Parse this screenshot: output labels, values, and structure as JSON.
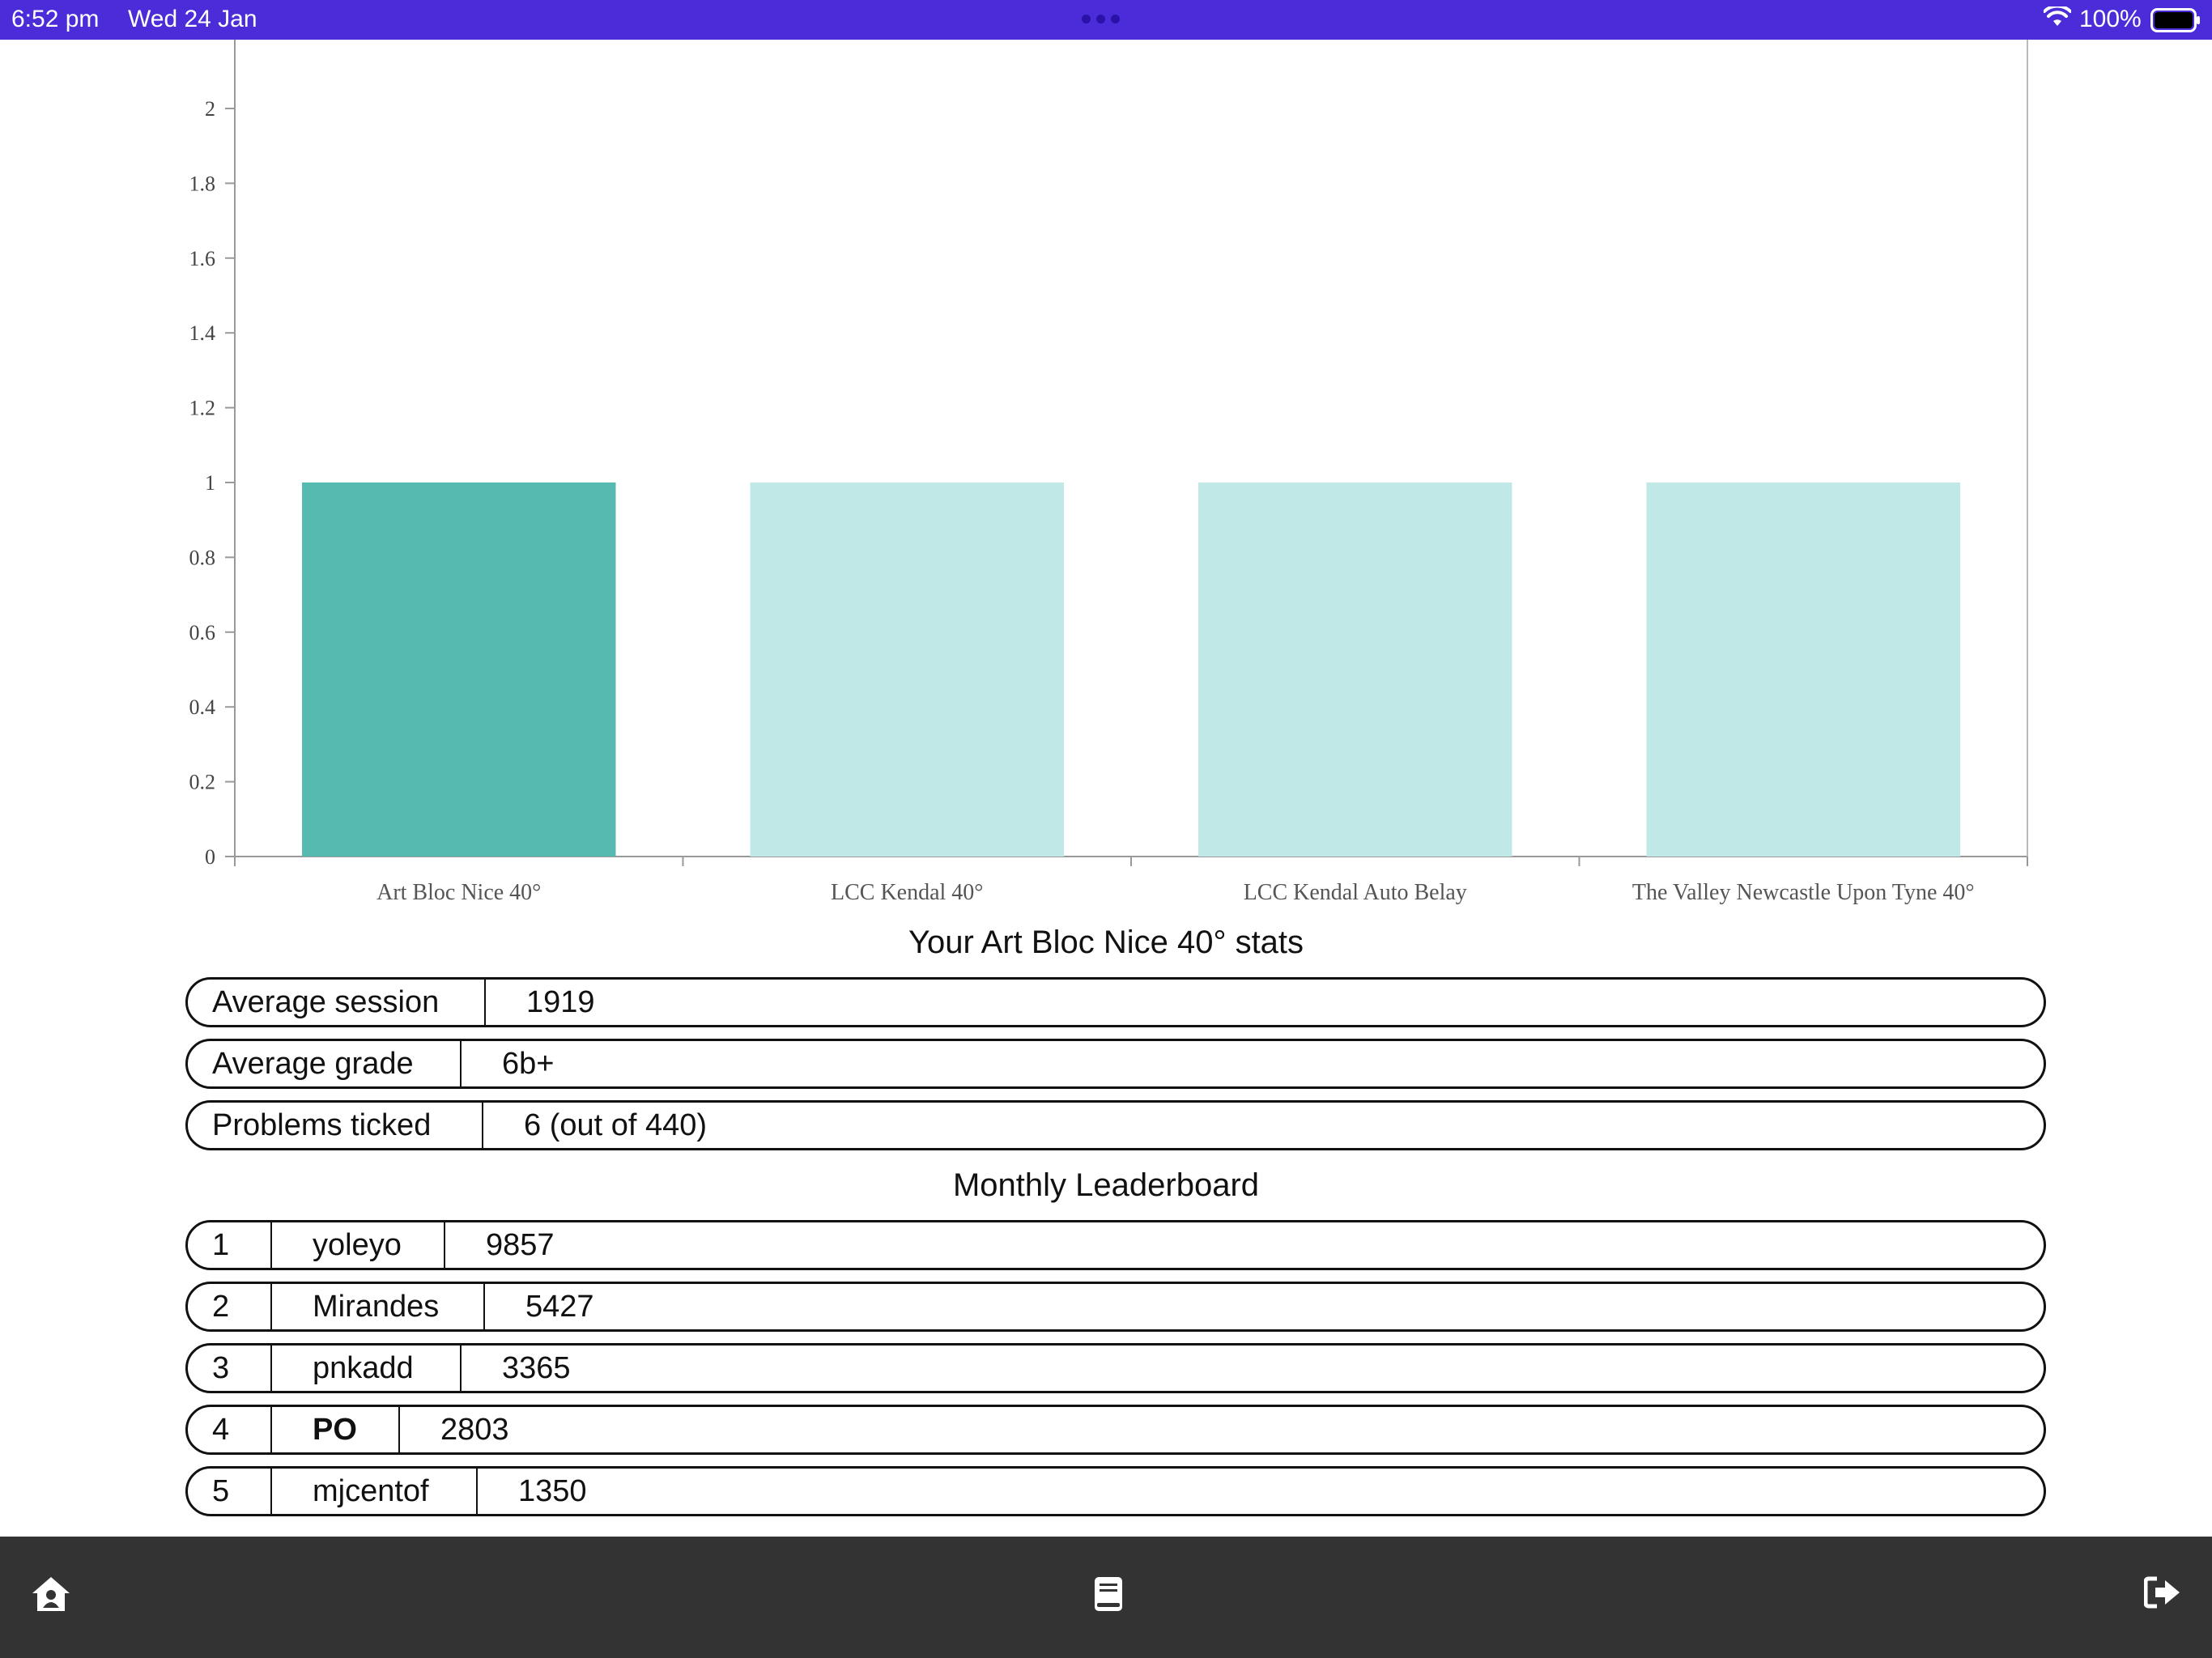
{
  "status_bar": {
    "time": "6:52 pm",
    "date": "Wed 24 Jan",
    "battery": "100%"
  },
  "chart_data": {
    "type": "bar",
    "categories": [
      "Art Bloc Nice 40°",
      "LCC Kendal 40°",
      "LCC Kendal Auto Belay",
      "The Valley Newcastle Upon Tyne 40°"
    ],
    "values": [
      1,
      1,
      1,
      1
    ],
    "highlighted_index": 0,
    "colors": {
      "highlight": "#57bab0",
      "normal": "#bfe8e6"
    },
    "yticks": [
      "0",
      "0.2",
      "0.4",
      "0.6",
      "0.8",
      "1",
      "1.2",
      "1.4",
      "1.6",
      "1.8",
      "2"
    ],
    "ylim": [
      0,
      2.2
    ],
    "grid": false
  },
  "stats": {
    "title": "Your Art Bloc Nice 40° stats",
    "rows": [
      {
        "label": "Average session",
        "value": "1919"
      },
      {
        "label": "Average grade",
        "value": "6b+"
      },
      {
        "label": "Problems ticked",
        "value": "6 (out of 440)"
      }
    ]
  },
  "leaderboard": {
    "title": "Monthly Leaderboard",
    "rows": [
      {
        "rank": "1",
        "name": "yoleyo",
        "score": "9857"
      },
      {
        "rank": "2",
        "name": "Mirandes",
        "score": "5427"
      },
      {
        "rank": "3",
        "name": "pnkadd",
        "score": "3365"
      },
      {
        "rank": "4",
        "name": "PO",
        "score": "2803"
      },
      {
        "rank": "5",
        "name": "mjcentof",
        "score": "1350"
      }
    ]
  },
  "bottom_nav": {
    "items": [
      {
        "icon": "home-icon"
      },
      {
        "icon": "book-icon"
      },
      {
        "icon": "logout-icon"
      }
    ]
  }
}
